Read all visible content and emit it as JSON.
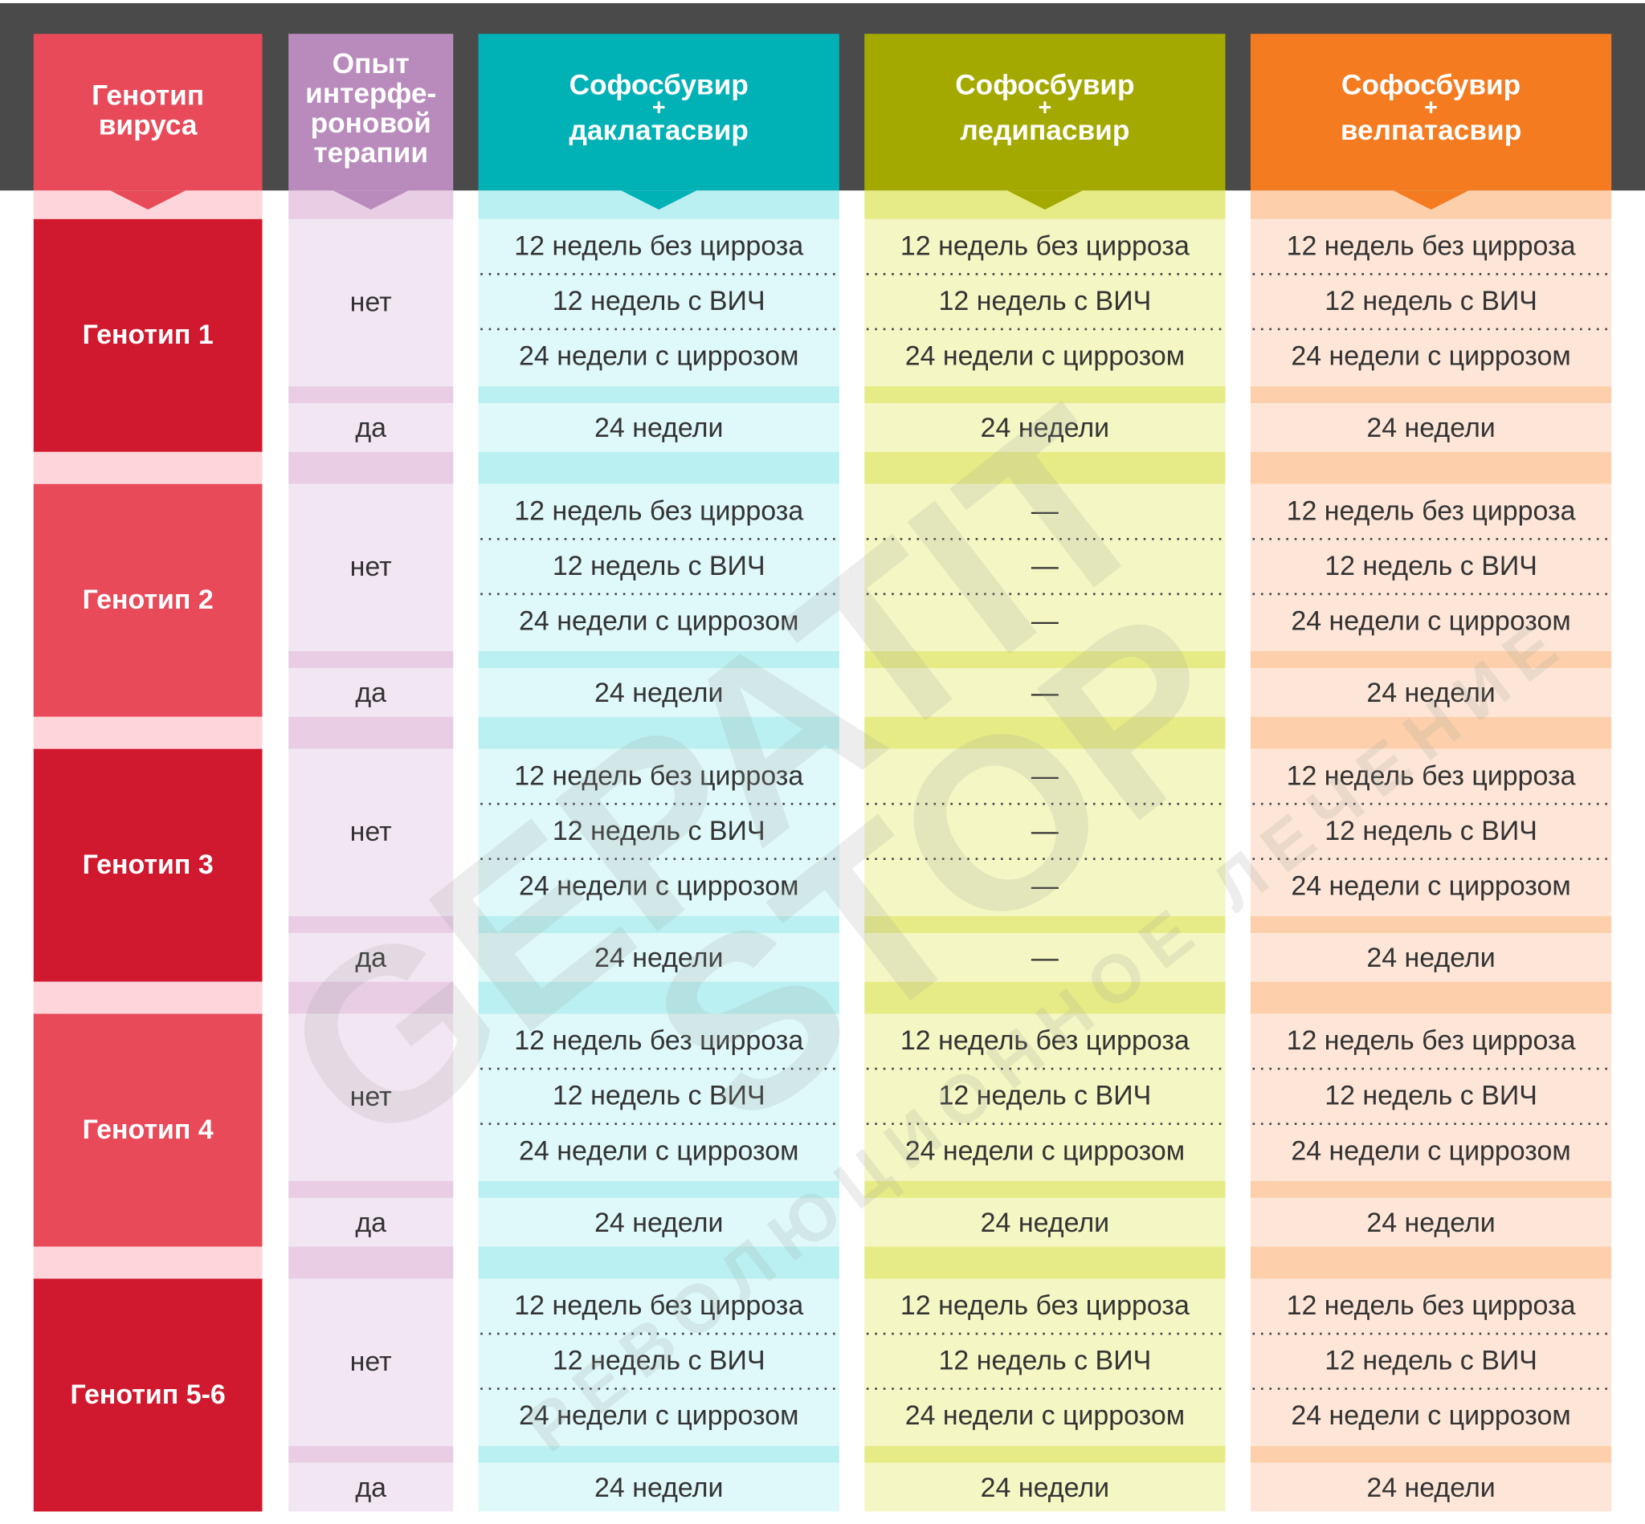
{
  "header": {
    "genotype": [
      "Генотип",
      "вируса"
    ],
    "experience": [
      "Опыт",
      "интерфе-",
      "роновой",
      "терапии"
    ],
    "drugs": [
      [
        "Софосбувир",
        "+",
        "даклатасвир"
      ],
      [
        "Софосбувир",
        "+",
        "ледипасвир"
      ],
      [
        "Софосбувир",
        "+",
        "велпатасвир"
      ]
    ]
  },
  "rows": [
    {
      "genotype": "Генотип 1",
      "naive": {
        "label": "нет",
        "cells": [
          [
            "12 недель без цирроза",
            "12 недель с ВИЧ",
            "24 недели с циррозом"
          ],
          [
            "12 недель без цирроза",
            "12 недель с ВИЧ",
            "24 недели с циррозом"
          ],
          [
            "12 недель без цирроза",
            "12 недель с ВИЧ",
            "24 недели с циррозом"
          ]
        ]
      },
      "experienced": {
        "label": "да",
        "cells": [
          "24 недели",
          "24 недели",
          "24 недели"
        ]
      }
    },
    {
      "genotype": "Генотип 2",
      "naive": {
        "label": "нет",
        "cells": [
          [
            "12 недель без цирроза",
            "12 недель с ВИЧ",
            "24 недели с циррозом"
          ],
          [
            "—",
            "—",
            "—"
          ],
          [
            "12 недель без цирроза",
            "12 недель с ВИЧ",
            "24 недели с циррозом"
          ]
        ]
      },
      "experienced": {
        "label": "да",
        "cells": [
          "24 недели",
          "—",
          "24 недели"
        ]
      }
    },
    {
      "genotype": "Генотип 3",
      "naive": {
        "label": "нет",
        "cells": [
          [
            "12 недель без цирроза",
            "12 недель с ВИЧ",
            "24 недели с циррозом"
          ],
          [
            "—",
            "—",
            "—"
          ],
          [
            "12 недель без цирроза",
            "12 недель с ВИЧ",
            "24 недели с циррозом"
          ]
        ]
      },
      "experienced": {
        "label": "да",
        "cells": [
          "24 недели",
          "—",
          "24 недели"
        ]
      }
    },
    {
      "genotype": "Генотип 4",
      "naive": {
        "label": "нет",
        "cells": [
          [
            "12 недель без цирроза",
            "12 недель с ВИЧ",
            "24 недели с циррозом"
          ],
          [
            "12 недель без цирроза",
            "12 недель с ВИЧ",
            "24 недели с циррозом"
          ],
          [
            "12 недель без цирроза",
            "12 недель с ВИЧ",
            "24 недели с циррозом"
          ]
        ]
      },
      "experienced": {
        "label": "да",
        "cells": [
          "24 недели",
          "24 недели",
          "24 недели"
        ]
      }
    },
    {
      "genotype": "Генотип 5-6",
      "naive": {
        "label": "нет",
        "cells": [
          [
            "12 недель без цирроза",
            "12 недель с ВИЧ",
            "24 недели с циррозом"
          ],
          [
            "12 недель без цирроза",
            "12 недель с ВИЧ",
            "24 недели с циррозом"
          ],
          [
            "12 недель без цирроза",
            "12 недель с ВИЧ",
            "24 недели с циррозом"
          ]
        ]
      },
      "experienced": {
        "label": "да",
        "cells": [
          "24 недели",
          "24 недели",
          "24 недели"
        ]
      }
    }
  ],
  "watermark": {
    "brand": [
      "GEPATIT",
      "STOP"
    ],
    "slogan": "РЕВОЛЮЦИОННОЕ ЛЕЧЕНИЕ"
  }
}
